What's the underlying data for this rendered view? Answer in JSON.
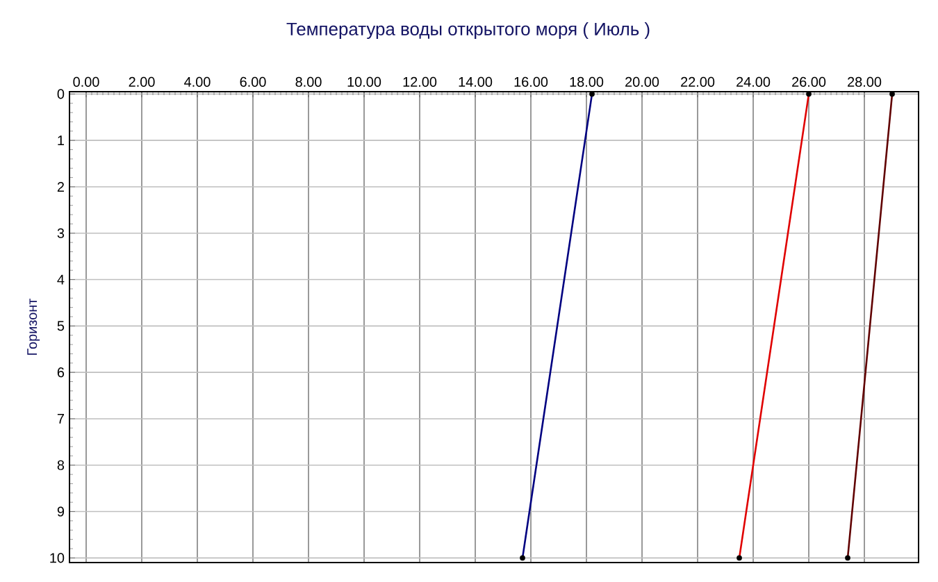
{
  "chart_data": {
    "type": "line",
    "title": "Температура воды открытого моря     ( Июль )",
    "ylabel": "Горизонт",
    "xlim": [
      -0.6,
      29.95
    ],
    "ylim": [
      10.1,
      -0.05
    ],
    "xticks": [
      {
        "value": 0,
        "label": "0.00"
      },
      {
        "value": 2,
        "label": "2.00"
      },
      {
        "value": 4,
        "label": "4.00"
      },
      {
        "value": 6,
        "label": "6.00"
      },
      {
        "value": 8,
        "label": "8.00"
      },
      {
        "value": 10,
        "label": "10.00"
      },
      {
        "value": 12,
        "label": "12.00"
      },
      {
        "value": 14,
        "label": "14.00"
      },
      {
        "value": 16,
        "label": "16.00"
      },
      {
        "value": 18,
        "label": "18.00"
      },
      {
        "value": 20,
        "label": "20.00"
      },
      {
        "value": 22,
        "label": "22.00"
      },
      {
        "value": 24,
        "label": "24.00"
      },
      {
        "value": 26,
        "label": "26.00"
      },
      {
        "value": 28,
        "label": "28.00"
      }
    ],
    "yticks": [
      0,
      1,
      2,
      3,
      4,
      5,
      6,
      7,
      8,
      9,
      10
    ],
    "grid": true,
    "marker": "circle",
    "line_style": "solid",
    "series": [
      {
        "color": "#000080",
        "x": [
          18.2,
          15.7
        ],
        "values": [
          0,
          10
        ]
      },
      {
        "color": "#e00000",
        "x": [
          26.0,
          23.5
        ],
        "values": [
          0,
          10
        ]
      },
      {
        "color": "#600000",
        "x": [
          29.0,
          27.4
        ],
        "values": [
          0,
          10
        ]
      }
    ]
  }
}
